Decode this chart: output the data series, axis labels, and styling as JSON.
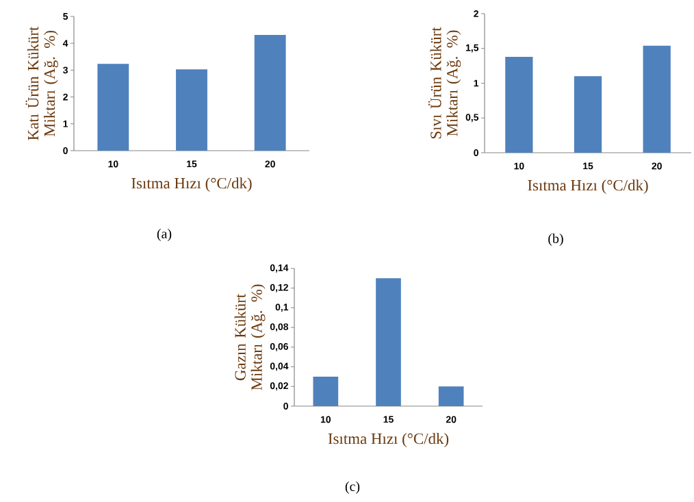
{
  "chart_data": [
    {
      "type": "bar",
      "categories": [
        "10",
        "15",
        "20"
      ],
      "values": [
        3.23,
        3.03,
        4.31
      ],
      "color": "#4f81bd",
      "ylim": [
        0,
        5
      ],
      "yticks": [
        0,
        1,
        2,
        3,
        4,
        5
      ],
      "xlabel": "Isıtma Hızı (°C/dk)",
      "ylabel": "Katı Ürün Kükürt Miktarı (Ağ. %)",
      "annotations": [
        "(a)"
      ]
    },
    {
      "type": "bar",
      "categories": [
        "10",
        "15",
        "20"
      ],
      "values": [
        1.38,
        1.1,
        1.54
      ],
      "color": "#4f81bd",
      "ylim": [
        0,
        2
      ],
      "yticks": [
        0,
        {
          "value": 0.5,
          "label": "0,5"
        },
        1,
        {
          "value": 1.5,
          "label": "1,5"
        },
        2
      ],
      "xlabel": "Isıtma Hızı (°C/dk)",
      "ylabel": "Sıvı Ürün Kükürt Miktarı (Ağ. %)",
      "annotations": [
        "(b)"
      ]
    },
    {
      "type": "bar",
      "categories": [
        "10",
        "15",
        "20"
      ],
      "values": [
        0.03,
        0.13,
        0.02
      ],
      "color": "#4f81bd",
      "ylim": [
        0,
        0.14
      ],
      "yticks": [
        0,
        {
          "value": 0.02,
          "label": "0,02"
        },
        {
          "value": 0.04,
          "label": "0,04"
        },
        {
          "value": 0.06,
          "label": "0,06"
        },
        {
          "value": 0.08,
          "label": "0,08"
        },
        {
          "value": 0.1,
          "label": "0,1"
        },
        {
          "value": 0.12,
          "label": "0,12"
        },
        {
          "value": 0.14,
          "label": "0,14"
        }
      ],
      "xlabel": "Isıtma Hızı (°C/dk)",
      "ylabel": "Gazın Kükürt Miktarı (Ağ. %)",
      "annotations": [
        "(c)"
      ]
    }
  ]
}
